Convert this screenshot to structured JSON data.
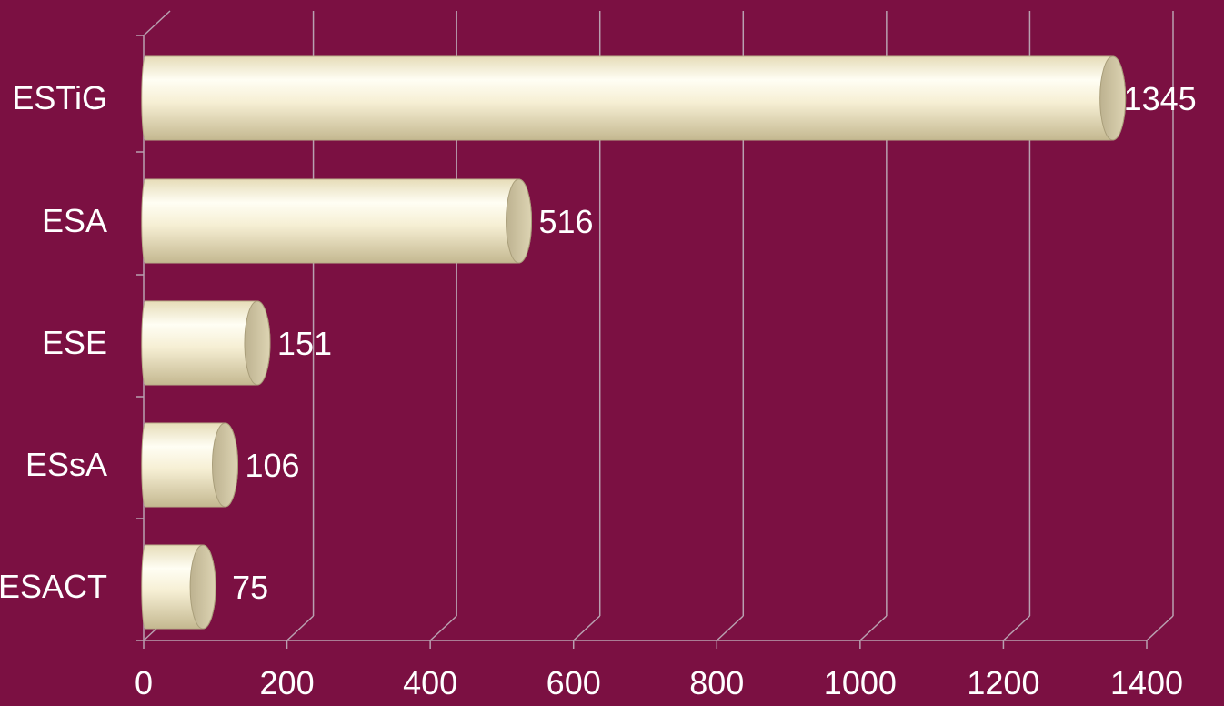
{
  "chart_data": {
    "type": "bar",
    "orientation": "horizontal",
    "categories": [
      "ESTiG",
      "ESA",
      "ESE",
      "ESsA",
      "ESACT"
    ],
    "values": [
      1345,
      516,
      151,
      106,
      75
    ],
    "data_labels": [
      "1345",
      "516",
      "151",
      "106",
      "75"
    ],
    "xlim": [
      0,
      1400
    ],
    "xticks": [
      0,
      200,
      400,
      600,
      800,
      1000,
      1200,
      1400
    ],
    "grid": true,
    "style": "3d-cylinder"
  },
  "colors": {
    "background": "#7b1042",
    "bar_light": "#fffdf0",
    "bar_mid": "#f1e8c7",
    "bar_shadow": "#c9bd97",
    "cap": "#cfc6a4",
    "gridline": "#b9a0b0",
    "text": "#ffffff"
  }
}
